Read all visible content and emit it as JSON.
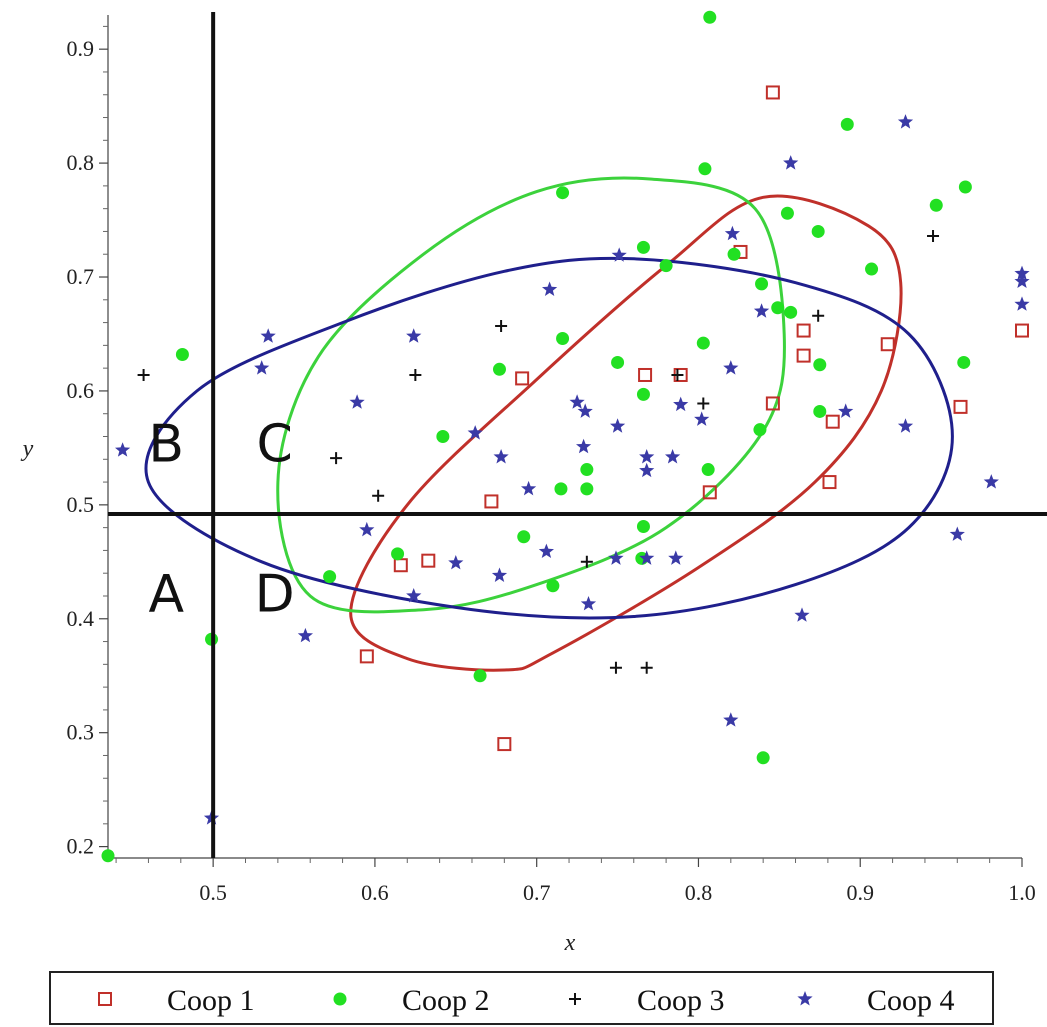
{
  "chart_data": {
    "type": "scatter",
    "xlabel": "x",
    "ylabel": "y",
    "xlim": [
      0.435,
      1.0
    ],
    "ylim": [
      0.19,
      0.93
    ],
    "x_ticks": [
      "0.5",
      "0.6",
      "0.7",
      "0.8",
      "0.9",
      "1.0"
    ],
    "y_ticks": [
      "0.2",
      "0.3",
      "0.4",
      "0.5",
      "0.6",
      "0.7",
      "0.8",
      "0.9"
    ],
    "grid": false,
    "legend_position": "bottom",
    "divider_lines": {
      "x": 0.5,
      "y": 0.492
    },
    "quadrant_labels": [
      {
        "text": "B",
        "x": 0.471,
        "y": 0.554
      },
      {
        "text": "C",
        "x": 0.538,
        "y": 0.554
      },
      {
        "text": "A",
        "x": 0.471,
        "y": 0.422
      },
      {
        "text": "D",
        "x": 0.538,
        "y": 0.422
      }
    ],
    "series": [
      {
        "name": "Coop 1",
        "marker": "open-square",
        "color": "#c0302a",
        "points": [
          [
            0.846,
            0.862
          ],
          [
            0.826,
            0.722
          ],
          [
            0.865,
            0.653
          ],
          [
            0.865,
            0.631
          ],
          [
            0.917,
            0.641
          ],
          [
            1.0,
            0.653
          ],
          [
            0.691,
            0.611
          ],
          [
            0.767,
            0.614
          ],
          [
            0.789,
            0.614
          ],
          [
            0.846,
            0.589
          ],
          [
            0.883,
            0.573
          ],
          [
            0.962,
            0.586
          ],
          [
            0.672,
            0.503
          ],
          [
            0.807,
            0.511
          ],
          [
            0.881,
            0.52
          ],
          [
            0.616,
            0.447
          ],
          [
            0.633,
            0.451
          ],
          [
            0.595,
            0.367
          ],
          [
            0.68,
            0.29
          ]
        ]
      },
      {
        "name": "Coop 2",
        "marker": "filled-circle",
        "color": "#22e022",
        "points": [
          [
            0.807,
            0.928
          ],
          [
            0.892,
            0.834
          ],
          [
            0.804,
            0.795
          ],
          [
            0.716,
            0.774
          ],
          [
            0.947,
            0.763
          ],
          [
            0.965,
            0.779
          ],
          [
            0.855,
            0.756
          ],
          [
            0.874,
            0.74
          ],
          [
            0.766,
            0.726
          ],
          [
            0.822,
            0.72
          ],
          [
            0.78,
            0.71
          ],
          [
            0.907,
            0.707
          ],
          [
            0.839,
            0.694
          ],
          [
            0.849,
            0.673
          ],
          [
            0.857,
            0.669
          ],
          [
            0.481,
            0.632
          ],
          [
            0.716,
            0.646
          ],
          [
            0.803,
            0.642
          ],
          [
            0.677,
            0.619
          ],
          [
            0.75,
            0.625
          ],
          [
            0.875,
            0.623
          ],
          [
            0.964,
            0.625
          ],
          [
            0.766,
            0.597
          ],
          [
            0.875,
            0.582
          ],
          [
            0.642,
            0.56
          ],
          [
            0.838,
            0.566
          ],
          [
            0.731,
            0.531
          ],
          [
            0.806,
            0.531
          ],
          [
            0.715,
            0.514
          ],
          [
            0.731,
            0.514
          ],
          [
            0.766,
            0.481
          ],
          [
            0.692,
            0.472
          ],
          [
            0.614,
            0.457
          ],
          [
            0.765,
            0.453
          ],
          [
            0.572,
            0.437
          ],
          [
            0.71,
            0.429
          ],
          [
            0.499,
            0.382
          ],
          [
            0.665,
            0.35
          ],
          [
            0.84,
            0.278
          ],
          [
            0.435,
            0.192
          ]
        ]
      },
      {
        "name": "Coop 3",
        "marker": "plus",
        "color": "#111111",
        "points": [
          [
            0.945,
            0.736
          ],
          [
            0.678,
            0.657
          ],
          [
            0.874,
            0.666
          ],
          [
            0.457,
            0.614
          ],
          [
            0.625,
            0.614
          ],
          [
            0.787,
            0.614
          ],
          [
            0.803,
            0.589
          ],
          [
            0.576,
            0.541
          ],
          [
            0.602,
            0.508
          ],
          [
            0.731,
            0.45
          ],
          [
            0.749,
            0.357
          ],
          [
            0.768,
            0.357
          ]
        ]
      },
      {
        "name": "Coop 4",
        "marker": "star",
        "color": "#3a3aa6",
        "points": [
          [
            0.928,
            0.836
          ],
          [
            0.857,
            0.8
          ],
          [
            0.821,
            0.738
          ],
          [
            0.751,
            0.719
          ],
          [
            1.0,
            0.703
          ],
          [
            1.0,
            0.696
          ],
          [
            0.708,
            0.689
          ],
          [
            1.0,
            0.676
          ],
          [
            0.534,
            0.648
          ],
          [
            0.624,
            0.648
          ],
          [
            0.839,
            0.67
          ],
          [
            0.53,
            0.62
          ],
          [
            0.82,
            0.62
          ],
          [
            0.589,
            0.59
          ],
          [
            0.725,
            0.59
          ],
          [
            0.73,
            0.582
          ],
          [
            0.789,
            0.588
          ],
          [
            0.891,
            0.582
          ],
          [
            0.802,
            0.575
          ],
          [
            0.75,
            0.569
          ],
          [
            0.928,
            0.569
          ],
          [
            0.662,
            0.563
          ],
          [
            0.729,
            0.551
          ],
          [
            0.444,
            0.548
          ],
          [
            0.678,
            0.542
          ],
          [
            0.768,
            0.542
          ],
          [
            0.784,
            0.542
          ],
          [
            0.768,
            0.53
          ],
          [
            0.981,
            0.52
          ],
          [
            0.695,
            0.514
          ],
          [
            0.595,
            0.478
          ],
          [
            0.96,
            0.474
          ],
          [
            0.706,
            0.459
          ],
          [
            0.749,
            0.453
          ],
          [
            0.768,
            0.453
          ],
          [
            0.786,
            0.453
          ],
          [
            0.65,
            0.449
          ],
          [
            0.677,
            0.438
          ],
          [
            0.624,
            0.42
          ],
          [
            0.732,
            0.413
          ],
          [
            0.864,
            0.403
          ],
          [
            0.557,
            0.385
          ],
          [
            0.82,
            0.311
          ],
          [
            0.499,
            0.225
          ]
        ]
      }
    ],
    "ellipses": [
      {
        "series": "Coop 1",
        "color": "#c0302a",
        "outline": [
          [
            0.84,
            0.77
          ],
          [
            0.905,
            0.745
          ],
          [
            0.925,
            0.695
          ],
          [
            0.913,
            0.6
          ],
          [
            0.872,
            0.52
          ],
          [
            0.8,
            0.445
          ],
          [
            0.71,
            0.37
          ],
          [
            0.68,
            0.355
          ],
          [
            0.62,
            0.365
          ],
          [
            0.585,
            0.405
          ],
          [
            0.62,
            0.5
          ],
          [
            0.7,
            0.61
          ],
          [
            0.78,
            0.71
          ]
        ]
      },
      {
        "series": "Coop 2",
        "color": "#3cd23c",
        "outline": [
          [
            0.77,
            0.786
          ],
          [
            0.835,
            0.76
          ],
          [
            0.853,
            0.65
          ],
          [
            0.84,
            0.565
          ],
          [
            0.78,
            0.48
          ],
          [
            0.7,
            0.43
          ],
          [
            0.63,
            0.408
          ],
          [
            0.56,
            0.42
          ],
          [
            0.54,
            0.52
          ],
          [
            0.565,
            0.63
          ],
          [
            0.63,
            0.72
          ],
          [
            0.7,
            0.775
          ]
        ]
      },
      {
        "series": "Coop 4",
        "color": "#1f1f8c",
        "outline": [
          [
            0.76,
            0.716
          ],
          [
            0.86,
            0.695
          ],
          [
            0.93,
            0.65
          ],
          [
            0.957,
            0.56
          ],
          [
            0.93,
            0.48
          ],
          [
            0.86,
            0.43
          ],
          [
            0.76,
            0.402
          ],
          [
            0.65,
            0.41
          ],
          [
            0.53,
            0.45
          ],
          [
            0.46,
            0.52
          ],
          [
            0.49,
            0.6
          ],
          [
            0.58,
            0.66
          ],
          [
            0.68,
            0.705
          ]
        ]
      }
    ]
  }
}
